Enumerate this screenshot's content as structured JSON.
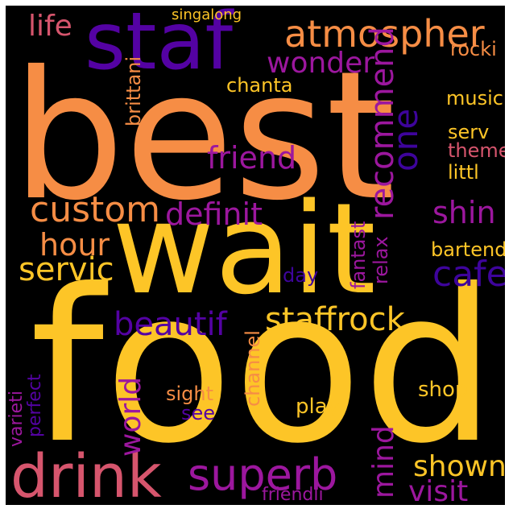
{
  "background": "#000000",
  "palette": {
    "orange": "#f68d45",
    "yellow": "#fdc527",
    "magenta": "#9c179e",
    "pink": "#d6556d",
    "indigo": "#5402a3",
    "deep": "#3e049c"
  },
  "words": [
    {
      "text": "best",
      "color": "#f68d45"
    },
    {
      "text": "food",
      "color": "#fdc527"
    },
    {
      "text": "wait",
      "color": "#fdc527"
    },
    {
      "text": "staf",
      "color": "#5402a3"
    },
    {
      "text": "atmospher",
      "color": "#f68d45"
    },
    {
      "text": "drink",
      "color": "#d6556d"
    },
    {
      "text": "superb",
      "color": "#9c179e"
    },
    {
      "text": "wonder",
      "color": "#9c179e"
    },
    {
      "text": "friend",
      "color": "#9c179e"
    },
    {
      "text": "custom",
      "color": "#f68d45"
    },
    {
      "text": "definit",
      "color": "#9c179e"
    },
    {
      "text": "recommend",
      "color": "#9c179e"
    },
    {
      "text": "one",
      "color": "#3e049c"
    },
    {
      "text": "shin",
      "color": "#9c179e"
    },
    {
      "text": "hour",
      "color": "#f68d45"
    },
    {
      "text": "servic",
      "color": "#fdc527"
    },
    {
      "text": "cafe",
      "color": "#3e049c"
    },
    {
      "text": "beautif",
      "color": "#5402a3"
    },
    {
      "text": "staffrock",
      "color": "#fdc527"
    },
    {
      "text": "world",
      "color": "#9c179e"
    },
    {
      "text": "shown",
      "color": "#fdc527"
    },
    {
      "text": "visit",
      "color": "#9c179e"
    },
    {
      "text": "mind",
      "color": "#9c179e"
    },
    {
      "text": "life",
      "color": "#d6556d"
    },
    {
      "text": "singalong",
      "color": "#fdc527"
    },
    {
      "text": "rocki",
      "color": "#f68d45"
    },
    {
      "text": "music",
      "color": "#fdc527"
    },
    {
      "text": "chanta",
      "color": "#fdc527"
    },
    {
      "text": "brittani",
      "color": "#f68d45"
    },
    {
      "text": "serv",
      "color": "#fdc527"
    },
    {
      "text": "theme",
      "color": "#d6556d"
    },
    {
      "text": "littl",
      "color": "#fdc527"
    },
    {
      "text": "bartend",
      "color": "#fdc527"
    },
    {
      "text": "fantast",
      "color": "#9c179e"
    },
    {
      "text": "relax",
      "color": "#9c179e"
    },
    {
      "text": "day",
      "color": "#3e049c"
    },
    {
      "text": "channel",
      "color": "#f68d45"
    },
    {
      "text": "sight",
      "color": "#f68d45"
    },
    {
      "text": "see",
      "color": "#5402a3"
    },
    {
      "text": "play",
      "color": "#fdc527"
    },
    {
      "text": "shop",
      "color": "#fdc527"
    },
    {
      "text": "varieti",
      "color": "#9c179e"
    },
    {
      "text": "perfect",
      "color": "#5402a3"
    },
    {
      "text": "friendli",
      "color": "#9c179e"
    }
  ]
}
